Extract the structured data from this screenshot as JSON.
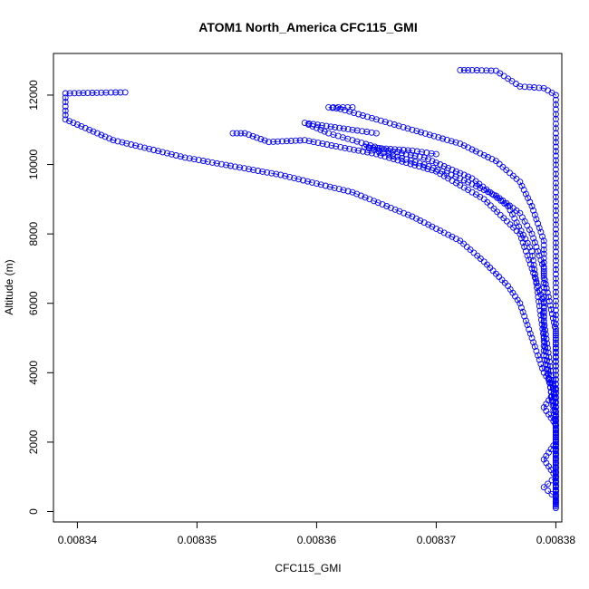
{
  "chart_data": {
    "type": "scatter",
    "title": "ATOM1 North_America CFC115_GMI",
    "xlabel": "CFC115_GMI",
    "ylabel": "Altitude (m)",
    "xlim": [
      0.008338,
      0.0083805
    ],
    "ylim": [
      -300,
      13200
    ],
    "x_ticks": [
      0.00834,
      0.00835,
      0.00836,
      0.00837,
      0.00838
    ],
    "x_tick_labels": [
      "0.00834",
      "0.00835",
      "0.00836",
      "0.00837",
      "0.00838"
    ],
    "y_ticks": [
      0,
      2000,
      4000,
      6000,
      8000,
      10000,
      12000
    ],
    "y_tick_labels": [
      "0",
      "2000",
      "4000",
      "6000",
      "8000",
      "10000",
      "12000"
    ],
    "marker": "open-circle",
    "color": "#0000ff",
    "grid": false,
    "legend": "none",
    "series": [
      {
        "values": [
          [
            0.00838,
            150
          ],
          [
            0.00838,
            400
          ],
          [
            0.008379,
            700
          ],
          [
            0.00838,
            1000
          ],
          [
            0.008379,
            1500
          ],
          [
            0.00838,
            2000
          ],
          [
            0.00838,
            2500
          ],
          [
            0.008379,
            3000
          ],
          [
            0.00838,
            3500
          ],
          [
            0.008379,
            4000
          ],
          [
            0.008378,
            5000
          ],
          [
            0.008377,
            6000
          ],
          [
            0.008376,
            6500
          ],
          [
            0.008374,
            7200
          ],
          [
            0.008372,
            7800
          ],
          [
            0.008368,
            8500
          ],
          [
            0.008363,
            9200
          ],
          [
            0.008357,
            9700
          ],
          [
            0.008349,
            10200
          ],
          [
            0.008343,
            10700
          ],
          [
            0.008339,
            11300
          ],
          [
            0.008339,
            11800
          ],
          [
            0.008339,
            12050
          ],
          [
            0.008342,
            12070
          ],
          [
            0.008344,
            12080
          ]
        ]
      },
      {
        "values": [
          [
            0.00838,
            200
          ],
          [
            0.00838,
            1200
          ],
          [
            0.00838,
            2800
          ],
          [
            0.008379,
            4500
          ],
          [
            0.008379,
            6000
          ],
          [
            0.008378,
            7000
          ],
          [
            0.008377,
            8000
          ],
          [
            0.008374,
            9000
          ],
          [
            0.00837,
            9800
          ],
          [
            0.008365,
            10300
          ],
          [
            0.008359,
            10700
          ],
          [
            0.008356,
            10650
          ],
          [
            0.008354,
            10900
          ],
          [
            0.008353,
            10900
          ]
        ]
      },
      {
        "values": [
          [
            0.00838,
            300
          ],
          [
            0.00838,
            1800
          ],
          [
            0.00838,
            3300
          ],
          [
            0.00838,
            5200
          ],
          [
            0.008379,
            6800
          ],
          [
            0.008379,
            7800
          ],
          [
            0.008378,
            8800
          ],
          [
            0.008377,
            9500
          ],
          [
            0.008375,
            10100
          ],
          [
            0.008372,
            10600
          ],
          [
            0.008368,
            11000
          ],
          [
            0.008362,
            11600
          ],
          [
            0.008361,
            11650
          ],
          [
            0.008363,
            11650
          ]
        ]
      },
      {
        "values": [
          [
            0.00838,
            100
          ],
          [
            0.00838,
            2200
          ],
          [
            0.00838,
            4200
          ],
          [
            0.00838,
            6200
          ],
          [
            0.00838,
            8000
          ],
          [
            0.00838,
            9600
          ],
          [
            0.00838,
            10900
          ],
          [
            0.00838,
            12000
          ],
          [
            0.008379,
            12200
          ],
          [
            0.008377,
            12250
          ],
          [
            0.008375,
            12700
          ],
          [
            0.008373,
            12720
          ],
          [
            0.008372,
            12720
          ]
        ]
      },
      {
        "values": [
          [
            0.00838,
            500
          ],
          [
            0.00838,
            2400
          ],
          [
            0.008379,
            5000
          ],
          [
            0.008378,
            7500
          ],
          [
            0.008376,
            8800
          ],
          [
            0.008373,
            9600
          ],
          [
            0.008369,
            10200
          ],
          [
            0.008366,
            10400
          ],
          [
            0.008363,
            10700
          ],
          [
            0.008361,
            10900
          ],
          [
            0.008359,
            11200
          ],
          [
            0.008363,
            11000
          ],
          [
            0.008365,
            10900
          ]
        ]
      },
      {
        "values": [
          [
            0.00838,
            600
          ],
          [
            0.00838,
            3000
          ],
          [
            0.008379,
            5500
          ],
          [
            0.008379,
            7000
          ],
          [
            0.008378,
            8000
          ],
          [
            0.008377,
            8600
          ],
          [
            0.008375,
            9100
          ],
          [
            0.008372,
            9600
          ],
          [
            0.008369,
            10000
          ],
          [
            0.008366,
            10300
          ],
          [
            0.008364,
            10500
          ],
          [
            0.008368,
            10400
          ],
          [
            0.00837,
            10300
          ]
        ]
      }
    ]
  }
}
